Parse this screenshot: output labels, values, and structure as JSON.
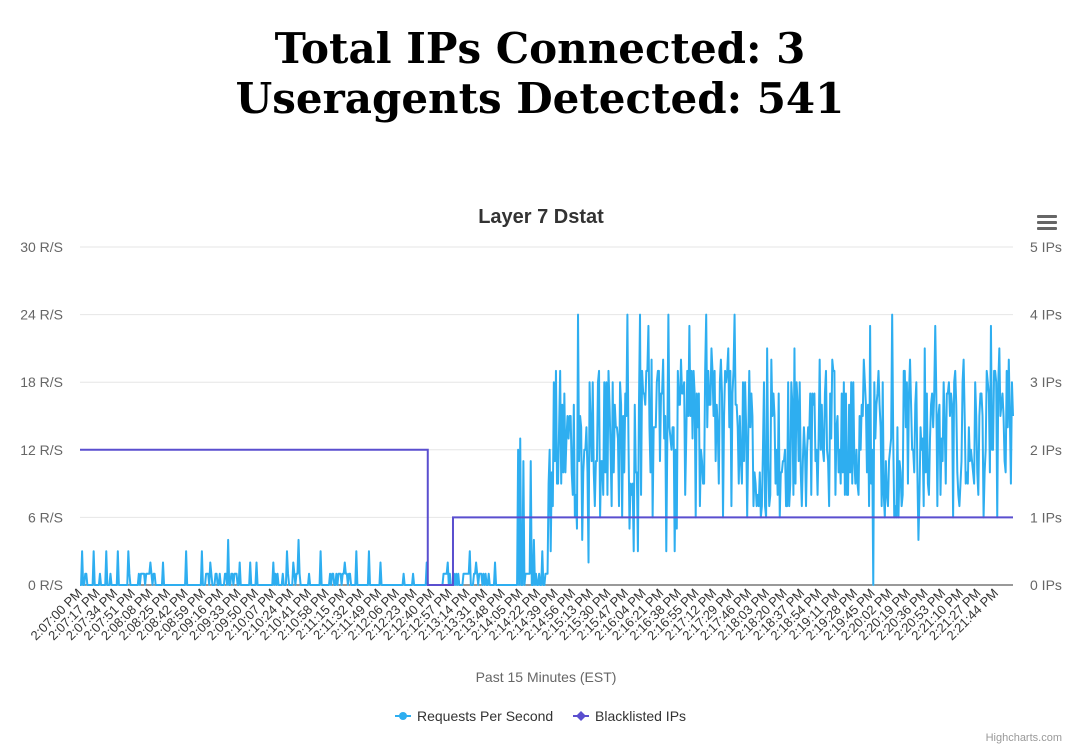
{
  "header": {
    "line1": "Total IPs Connected: 3",
    "line2": "Useragents Detected: 541"
  },
  "credit": "Highcharts.com",
  "chart_data": {
    "type": "line",
    "title": "Layer 7 Dstat",
    "xlabel": "Past 15 Minutes (EST)",
    "x_ticks": [
      "2:07:00 PM",
      "2:07:17 PM",
      "2:07:34 PM",
      "2:07:51 PM",
      "2:08:08 PM",
      "2:08:25 PM",
      "2:08:42 PM",
      "2:08:59 PM",
      "2:09:16 PM",
      "2:09:33 PM",
      "2:09:50 PM",
      "2:10:07 PM",
      "2:10:24 PM",
      "2:10:41 PM",
      "2:10:58 PM",
      "2:11:15 PM",
      "2:11:32 PM",
      "2:11:49 PM",
      "2:12:06 PM",
      "2:12:23 PM",
      "2:12:40 PM",
      "2:12:57 PM",
      "2:13:14 PM",
      "2:13:31 PM",
      "2:13:48 PM",
      "2:14:05 PM",
      "2:14:22 PM",
      "2:14:39 PM",
      "2:14:56 PM",
      "2:15:13 PM",
      "2:15:30 PM",
      "2:15:47 PM",
      "2:16:04 PM",
      "2:16:21 PM",
      "2:16:38 PM",
      "2:16:55 PM",
      "2:17:12 PM",
      "2:17:29 PM",
      "2:17:46 PM",
      "2:18:03 PM",
      "2:18:20 PM",
      "2:18:37 PM",
      "2:18:54 PM",
      "2:19:11 PM",
      "2:19:28 PM",
      "2:19:45 PM",
      "2:20:02 PM",
      "2:20:19 PM",
      "2:20:36 PM",
      "2:20:53 PM",
      "2:21:10 PM",
      "2:21:27 PM",
      "2:21:44 PM"
    ],
    "y_left": {
      "ticks": [
        "0 R/S",
        "6 R/S",
        "12 R/S",
        "18 R/S",
        "24 R/S",
        "30 R/S"
      ],
      "range": [
        0,
        30
      ]
    },
    "y_right": {
      "ticks": [
        "0 IPs",
        "1 IPs",
        "2 IPs",
        "3 IPs",
        "4 IPs",
        "5 IPs"
      ],
      "range": [
        0,
        5
      ]
    },
    "x_range_seconds": [
      0,
      888
    ],
    "legend": {
      "placement": "bottom-center"
    },
    "series": [
      {
        "name": "Requests Per Second",
        "color": "#2eaef0",
        "axis": "left",
        "spikes": [
          [
            2,
            3
          ],
          [
            5,
            1
          ],
          [
            6,
            1
          ],
          [
            13,
            3
          ],
          [
            19,
            1
          ],
          [
            25,
            3
          ],
          [
            29,
            1
          ],
          [
            36,
            3
          ],
          [
            46,
            3
          ],
          [
            47,
            1
          ],
          [
            67,
            2
          ],
          [
            71,
            1
          ],
          [
            79,
            2
          ],
          [
            101,
            3
          ],
          [
            116,
            3
          ],
          [
            124,
            2
          ],
          [
            141,
            4
          ],
          [
            152,
            2
          ],
          [
            162,
            2
          ],
          [
            168,
            2
          ],
          [
            184,
            2
          ],
          [
            197,
            3
          ],
          [
            203,
            2
          ],
          [
            208,
            4
          ],
          [
            218,
            1
          ],
          [
            229,
            3
          ],
          [
            241,
            1
          ],
          [
            252,
            2
          ],
          [
            263,
            3
          ],
          [
            275,
            3
          ],
          [
            286,
            2
          ],
          [
            308,
            1
          ],
          [
            317,
            1
          ],
          [
            330,
            2
          ],
          [
            350,
            2
          ],
          [
            371,
            3
          ],
          [
            377,
            2
          ],
          [
            395,
            2
          ],
          [
            417,
            12
          ],
          [
            419,
            13
          ],
          [
            422,
            11
          ],
          [
            429,
            11
          ],
          [
            432,
            4
          ],
          [
            440,
            3
          ]
        ],
        "bursts": [
          {
            "start": 56,
            "end": 72,
            "low": 0,
            "high": 1
          },
          {
            "start": 120,
            "end": 150,
            "low": 0,
            "high": 1
          },
          {
            "start": 184,
            "end": 210,
            "low": 0,
            "high": 1
          },
          {
            "start": 238,
            "end": 258,
            "low": 0,
            "high": 1
          },
          {
            "start": 345,
            "end": 372,
            "low": 0,
            "high": 1
          },
          {
            "start": 374,
            "end": 394,
            "low": 0,
            "high": 1
          },
          {
            "start": 424,
            "end": 446,
            "low": 0,
            "high": 1
          },
          {
            "start": 446,
            "end": 888,
            "low": 6,
            "high": 19
          },
          {
            "start": 535,
            "end": 640,
            "low": 8,
            "high": 20
          }
        ],
        "peaks": [
          [
            474,
            24
          ],
          [
            521,
            24
          ],
          [
            533,
            24
          ],
          [
            541,
            23
          ],
          [
            555,
            20
          ],
          [
            560,
            24
          ],
          [
            572,
            20
          ],
          [
            580,
            23
          ],
          [
            589,
            17
          ],
          [
            596,
            24
          ],
          [
            601,
            21
          ],
          [
            609,
            18
          ],
          [
            617,
            21
          ],
          [
            623,
            24
          ],
          [
            637,
            19
          ],
          [
            654,
            21
          ],
          [
            658,
            20
          ],
          [
            665,
            17
          ],
          [
            680,
            21
          ],
          [
            695,
            17
          ],
          [
            704,
            20
          ],
          [
            716,
            20
          ],
          [
            727,
            18
          ],
          [
            746,
            20
          ],
          [
            752,
            23
          ],
          [
            760,
            19
          ],
          [
            773,
            24
          ],
          [
            784,
            19
          ],
          [
            790,
            20
          ],
          [
            804,
            21
          ],
          [
            814,
            23
          ],
          [
            826,
            17
          ],
          [
            841,
            20
          ],
          [
            858,
            17
          ],
          [
            867,
            23
          ],
          [
            875,
            21
          ],
          [
            884,
            20
          ],
          [
            887,
            18
          ]
        ],
        "dips": [
          [
            448,
            3
          ],
          [
            473,
            5
          ],
          [
            478,
            4
          ],
          [
            484,
            2
          ],
          [
            502,
            8
          ],
          [
            506,
            7
          ],
          [
            523,
            5
          ],
          [
            527,
            3
          ],
          [
            531,
            3
          ],
          [
            534,
            8
          ],
          [
            545,
            6
          ],
          [
            558,
            3
          ],
          [
            566,
            3
          ],
          [
            568,
            5
          ],
          [
            576,
            8
          ],
          [
            586,
            6
          ],
          [
            590,
            7
          ],
          [
            608,
            9
          ],
          [
            612,
            6
          ],
          [
            620,
            7
          ],
          [
            635,
            6
          ],
          [
            641,
            7
          ],
          [
            648,
            6
          ],
          [
            653,
            6
          ],
          [
            656,
            7
          ],
          [
            664,
            8
          ],
          [
            676,
            9
          ],
          [
            691,
            7
          ],
          [
            696,
            8
          ],
          [
            704,
            9
          ],
          [
            713,
            7
          ],
          [
            724,
            9
          ],
          [
            731,
            8
          ],
          [
            741,
            8
          ],
          [
            755,
            0
          ],
          [
            768,
            8
          ],
          [
            776,
            7
          ],
          [
            788,
            9
          ],
          [
            798,
            4
          ],
          [
            803,
            7
          ],
          [
            819,
            8
          ],
          [
            837,
            7
          ],
          [
            845,
            9
          ],
          [
            855,
            8
          ],
          [
            866,
            10
          ]
        ]
      },
      {
        "name": "Blacklisted IPs",
        "color": "#5a4fcf",
        "axis": "right",
        "steps": [
          [
            0,
            2
          ],
          [
            331,
            2
          ],
          [
            331,
            0
          ],
          [
            355,
            0
          ],
          [
            355,
            1
          ],
          [
            888,
            1
          ]
        ]
      }
    ]
  }
}
